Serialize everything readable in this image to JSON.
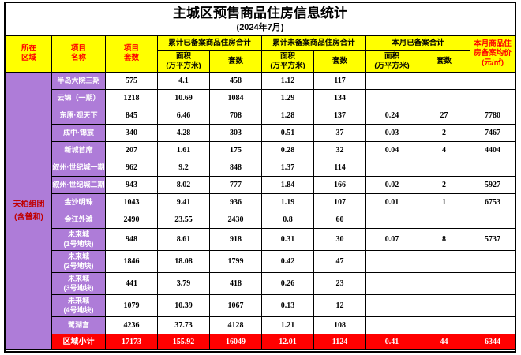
{
  "title": "主城区预售商品住房信息统计",
  "subtitle": "(2024年7月)",
  "region_label": "天柏组团\n(含普和)",
  "colors": {
    "header_bg": "#FFFF00",
    "header_red_text": "#FF0000",
    "region_bg": "#AE7CD8",
    "region_text": "#C00000",
    "project_name_text": "#FFFFFF",
    "subtotal_bg": "#FF0000",
    "border": "#000000"
  },
  "header": {
    "region": "所在\n区域",
    "project_name": "项目\n名称",
    "project_units": "项目\n套数",
    "groups": [
      {
        "label": "累计已备案商品住房合计"
      },
      {
        "label": "累计未备案商品住房合计"
      },
      {
        "label": "本月已备案合计"
      }
    ],
    "sub_area": "面积\n(万平方米)",
    "sub_units": "套数",
    "avg_price": "本月商品住\n房备案均价\n(元/㎡)"
  },
  "table": {
    "rows": [
      {
        "name": "半岛大院三期",
        "units": "575",
        "a1": "4.1",
        "n1": "458",
        "a2": "1.12",
        "n2": "117",
        "a3": "",
        "n3": "",
        "price": ""
      },
      {
        "name": "云锦（一期）",
        "units": "1218",
        "a1": "10.69",
        "n1": "1084",
        "a2": "1.29",
        "n2": "134",
        "a3": "",
        "n3": "",
        "price": ""
      },
      {
        "name": "东原·观天下",
        "units": "845",
        "a1": "6.46",
        "n1": "708",
        "a2": "1.28",
        "n2": "137",
        "a3": "0.24",
        "n3": "27",
        "price": "7780"
      },
      {
        "name": "成中·锦宸",
        "units": "340",
        "a1": "4.28",
        "n1": "303",
        "a2": "0.51",
        "n2": "37",
        "a3": "0.03",
        "n3": "2",
        "price": "7467"
      },
      {
        "name": "新城首席",
        "units": "207",
        "a1": "1.61",
        "n1": "175",
        "a2": "0.28",
        "n2": "32",
        "a3": "0.04",
        "n3": "4",
        "price": "4404"
      },
      {
        "name": "叙州·世纪城一期",
        "units": "962",
        "a1": "9.2",
        "n1": "848",
        "a2": "1.37",
        "n2": "114",
        "a3": "",
        "n3": "",
        "price": ""
      },
      {
        "name": "叙州·世纪城二期",
        "units": "943",
        "a1": "8.02",
        "n1": "777",
        "a2": "1.84",
        "n2": "166",
        "a3": "0.02",
        "n3": "2",
        "price": "5927"
      },
      {
        "name": "金沙明珠",
        "units": "1043",
        "a1": "9.41",
        "n1": "936",
        "a2": "1.19",
        "n2": "107",
        "a3": "0.01",
        "n3": "1",
        "price": "6753"
      },
      {
        "name": "金江外滩",
        "units": "2490",
        "a1": "23.55",
        "n1": "2430",
        "a2": "0.8",
        "n2": "60",
        "a3": "",
        "n3": "",
        "price": ""
      },
      {
        "name": "未来城\n(1号地块)",
        "units": "948",
        "a1": "8.61",
        "n1": "918",
        "a2": "0.31",
        "n2": "30",
        "a3": "0.07",
        "n3": "8",
        "price": "5737"
      },
      {
        "name": "未来城\n(2号地块)",
        "units": "1846",
        "a1": "18.08",
        "n1": "1799",
        "a2": "0.42",
        "n2": "47",
        "a3": "",
        "n3": "",
        "price": ""
      },
      {
        "name": "未来城\n(3号地块)",
        "units": "441",
        "a1": "3.79",
        "n1": "418",
        "a2": "0.26",
        "n2": "23",
        "a3": "",
        "n3": "",
        "price": ""
      },
      {
        "name": "未来城\n(4号地块)",
        "units": "1079",
        "a1": "10.39",
        "n1": "1067",
        "a2": "0.13",
        "n2": "12",
        "a3": "",
        "n3": "",
        "price": ""
      },
      {
        "name": "鹭湖宫",
        "units": "4236",
        "a1": "37.73",
        "n1": "4128",
        "a2": "1.21",
        "n2": "108",
        "a3": "",
        "n3": "",
        "price": ""
      }
    ],
    "subtotal": {
      "label": "区域小计",
      "units": "17173",
      "a1": "155.92",
      "n1": "16049",
      "a2": "12.01",
      "n2": "1124",
      "a3": "0.41",
      "n3": "44",
      "price": "6344"
    }
  }
}
